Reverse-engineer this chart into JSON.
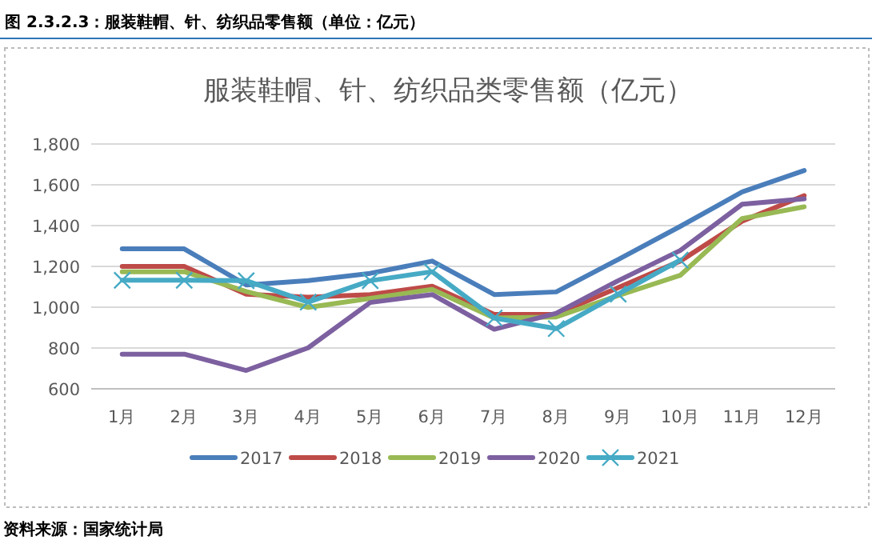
{
  "chart_data": {
    "type": "line",
    "title": "服装鞋帽、针、纺织品类零售额（亿元）",
    "categories": [
      "1月",
      "2月",
      "3月",
      "4月",
      "5月",
      "6月",
      "7月",
      "8月",
      "9月",
      "10月",
      "11月",
      "12月"
    ],
    "series": [
      {
        "name": "2017",
        "color": "#4a7ebb",
        "values": [
          1286,
          1286,
          1109,
          1130,
          1166,
          1226,
          1062,
          1075,
          1234,
          1396,
          1565,
          1670
        ]
      },
      {
        "name": "2018",
        "color": "#be4b48",
        "values": [
          1200,
          1200,
          1064,
          1049,
          1062,
          1103,
          965,
          965,
          1096,
          1226,
          1422,
          1547
        ]
      },
      {
        "name": "2019",
        "color": "#98b954",
        "values": [
          1174,
          1174,
          1077,
          999,
          1043,
          1087,
          947,
          952,
          1057,
          1156,
          1435,
          1492
        ]
      },
      {
        "name": "2020",
        "color": "#7d60a0",
        "values": [
          770,
          770,
          690,
          801,
          1023,
          1062,
          892,
          970,
          1130,
          1278,
          1505,
          1531
        ]
      },
      {
        "name": "2021",
        "color": "#46aac5",
        "marker": "cross",
        "values": [
          1132,
          1132,
          1130,
          1025,
          1130,
          1174,
          947,
          895,
          1064,
          1231,
          null,
          null
        ]
      }
    ],
    "ylim": [
      600,
      1800
    ],
    "yticks": [
      600,
      800,
      {
        "value": 1000,
        "label": "1,000"
      },
      {
        "value": 1200,
        "label": "1,200"
      },
      {
        "value": 1400,
        "label": "1,400"
      },
      {
        "value": 1600,
        "label": "1,600"
      },
      {
        "value": 1800,
        "label": "1,800"
      }
    ],
    "grid": "y",
    "legend": "bottom",
    "annotations": [
      "图 2.3.2.3：服装鞋帽、针、纺织品零售额（单位：亿元）",
      "资料来源：国家统计局"
    ]
  }
}
